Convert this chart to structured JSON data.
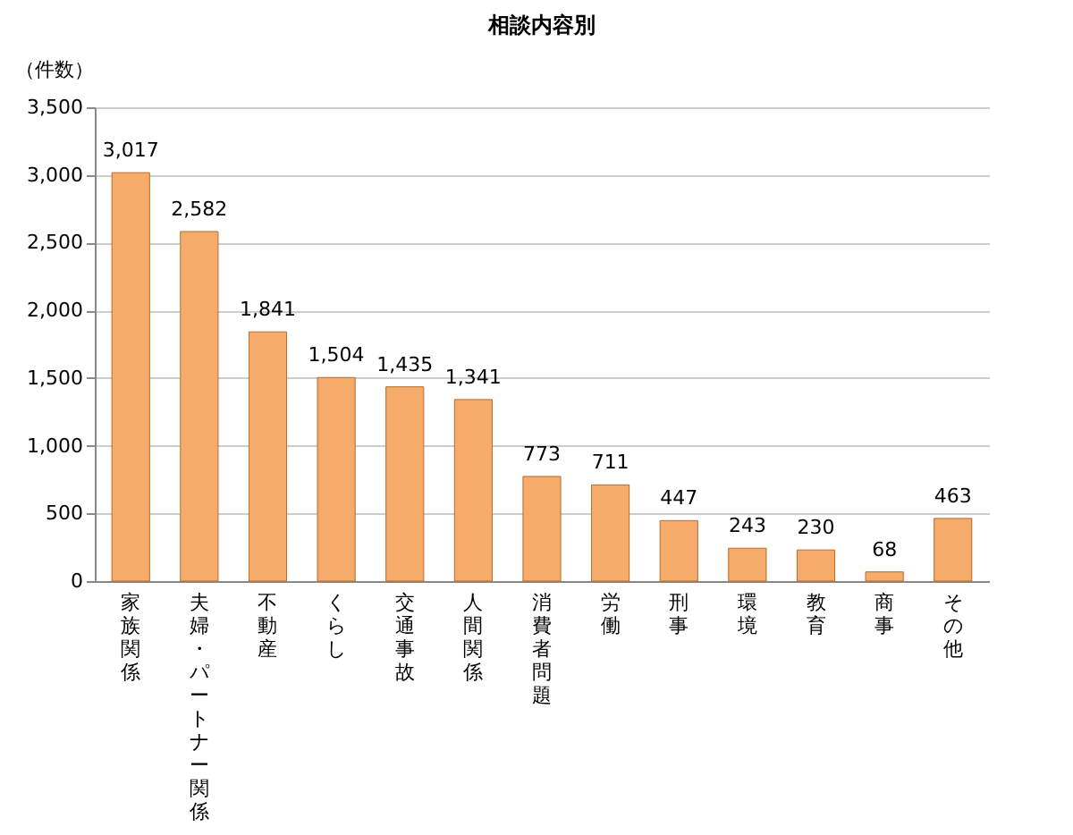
{
  "chart_data": {
    "type": "bar",
    "title": "相談内容別",
    "ylabel": "（件数）",
    "categories": [
      "家族関係",
      "夫婦・パートナー関係",
      "不動産",
      "くらし",
      "交通事故",
      "人間関係",
      "消費者問題",
      "労働",
      "刑事",
      "環境",
      "教育",
      "商事",
      "その他"
    ],
    "values": [
      3017,
      2582,
      1841,
      1504,
      1435,
      1341,
      773,
      711,
      447,
      243,
      230,
      68,
      463
    ],
    "value_labels": [
      "3,017",
      "2,582",
      "1,841",
      "1,504",
      "1,435",
      "1,341",
      "773",
      "711",
      "447",
      "243",
      "230",
      "68",
      "463"
    ],
    "color": "#f5ac6a",
    "ylim": [
      0,
      3500
    ],
    "yticks": [
      0,
      500,
      {
        "value": 1000,
        "label": "1,000"
      },
      {
        "value": 1500,
        "label": "1,500"
      },
      {
        "value": 2000,
        "label": "2,000"
      },
      {
        "value": 2500,
        "label": "2,500"
      },
      {
        "value": 3000,
        "label": "3,000"
      },
      {
        "value": 3500,
        "label": "3,500"
      }
    ],
    "grid": "y"
  }
}
